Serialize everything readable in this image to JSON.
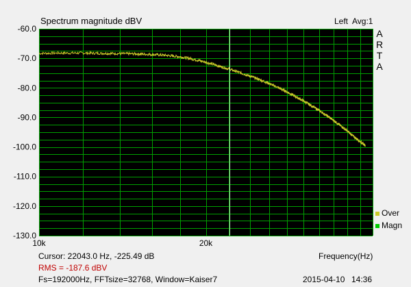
{
  "header": {
    "title": "Spectrum magnitude dBV",
    "channel": "Left",
    "average": "Avg:1"
  },
  "brand": [
    "A",
    "R",
    "T",
    "A"
  ],
  "legend": [
    {
      "label": "Over",
      "color": "#c8c828"
    },
    {
      "label": "Magn",
      "color": "#00cc00"
    }
  ],
  "footer": {
    "cursor": "Cursor: 22043.0 Hz, -225.49 dB",
    "rms": "RMS = -187.6 dBV",
    "params": "Fs=192000Hz, FFTsize=32768, Window=Kaiser7",
    "date": "2015-04-10",
    "time": "14:36"
  },
  "chart_data": {
    "type": "line",
    "title": "Spectrum magnitude dBV",
    "xlabel": "Frequency(Hz)",
    "ylabel": "",
    "x_scale": "log",
    "xlim": [
      10000,
      40000
    ],
    "ylim": [
      -130,
      -60
    ],
    "x_ticks": [
      {
        "value": 10000,
        "label": "10k"
      },
      {
        "value": 20000,
        "label": "20k"
      }
    ],
    "y_ticks": [
      -60,
      -70,
      -80,
      -90,
      -100,
      -110,
      -120,
      -130
    ],
    "y_tick_labels": [
      "-60.0",
      "-70.0",
      "-80.0",
      "-90.0",
      "-100.0",
      "-110.0",
      "-120.0",
      "-130.0"
    ],
    "grid": true,
    "cursor_x": 22043.0,
    "colors": {
      "background": "#000000",
      "grid": "#00a000",
      "trace": "#c8c828",
      "cursor": "#c8e6c8"
    },
    "series": [
      {
        "name": "Over",
        "color": "#c8c828",
        "x": [
          10000,
          11000,
          12000,
          13000,
          14000,
          15000,
          16000,
          17000,
          18000,
          19000,
          20000,
          21000,
          22000,
          23000,
          24000,
          25000,
          26000,
          27000,
          28000,
          29000,
          30000,
          31000,
          32000,
          33000,
          34000,
          35000,
          36000,
          37000,
          38000,
          38800
        ],
        "y": [
          -68.3,
          -68.2,
          -68.2,
          -68.3,
          -68.4,
          -68.5,
          -68.7,
          -69.0,
          -69.5,
          -70.3,
          -71.3,
          -72.5,
          -73.6,
          -74.8,
          -76.0,
          -77.2,
          -78.5,
          -79.9,
          -81.3,
          -82.9,
          -84.4,
          -86.0,
          -87.6,
          -89.3,
          -91.0,
          -92.8,
          -94.6,
          -96.5,
          -98.2,
          -99.5
        ]
      }
    ]
  }
}
